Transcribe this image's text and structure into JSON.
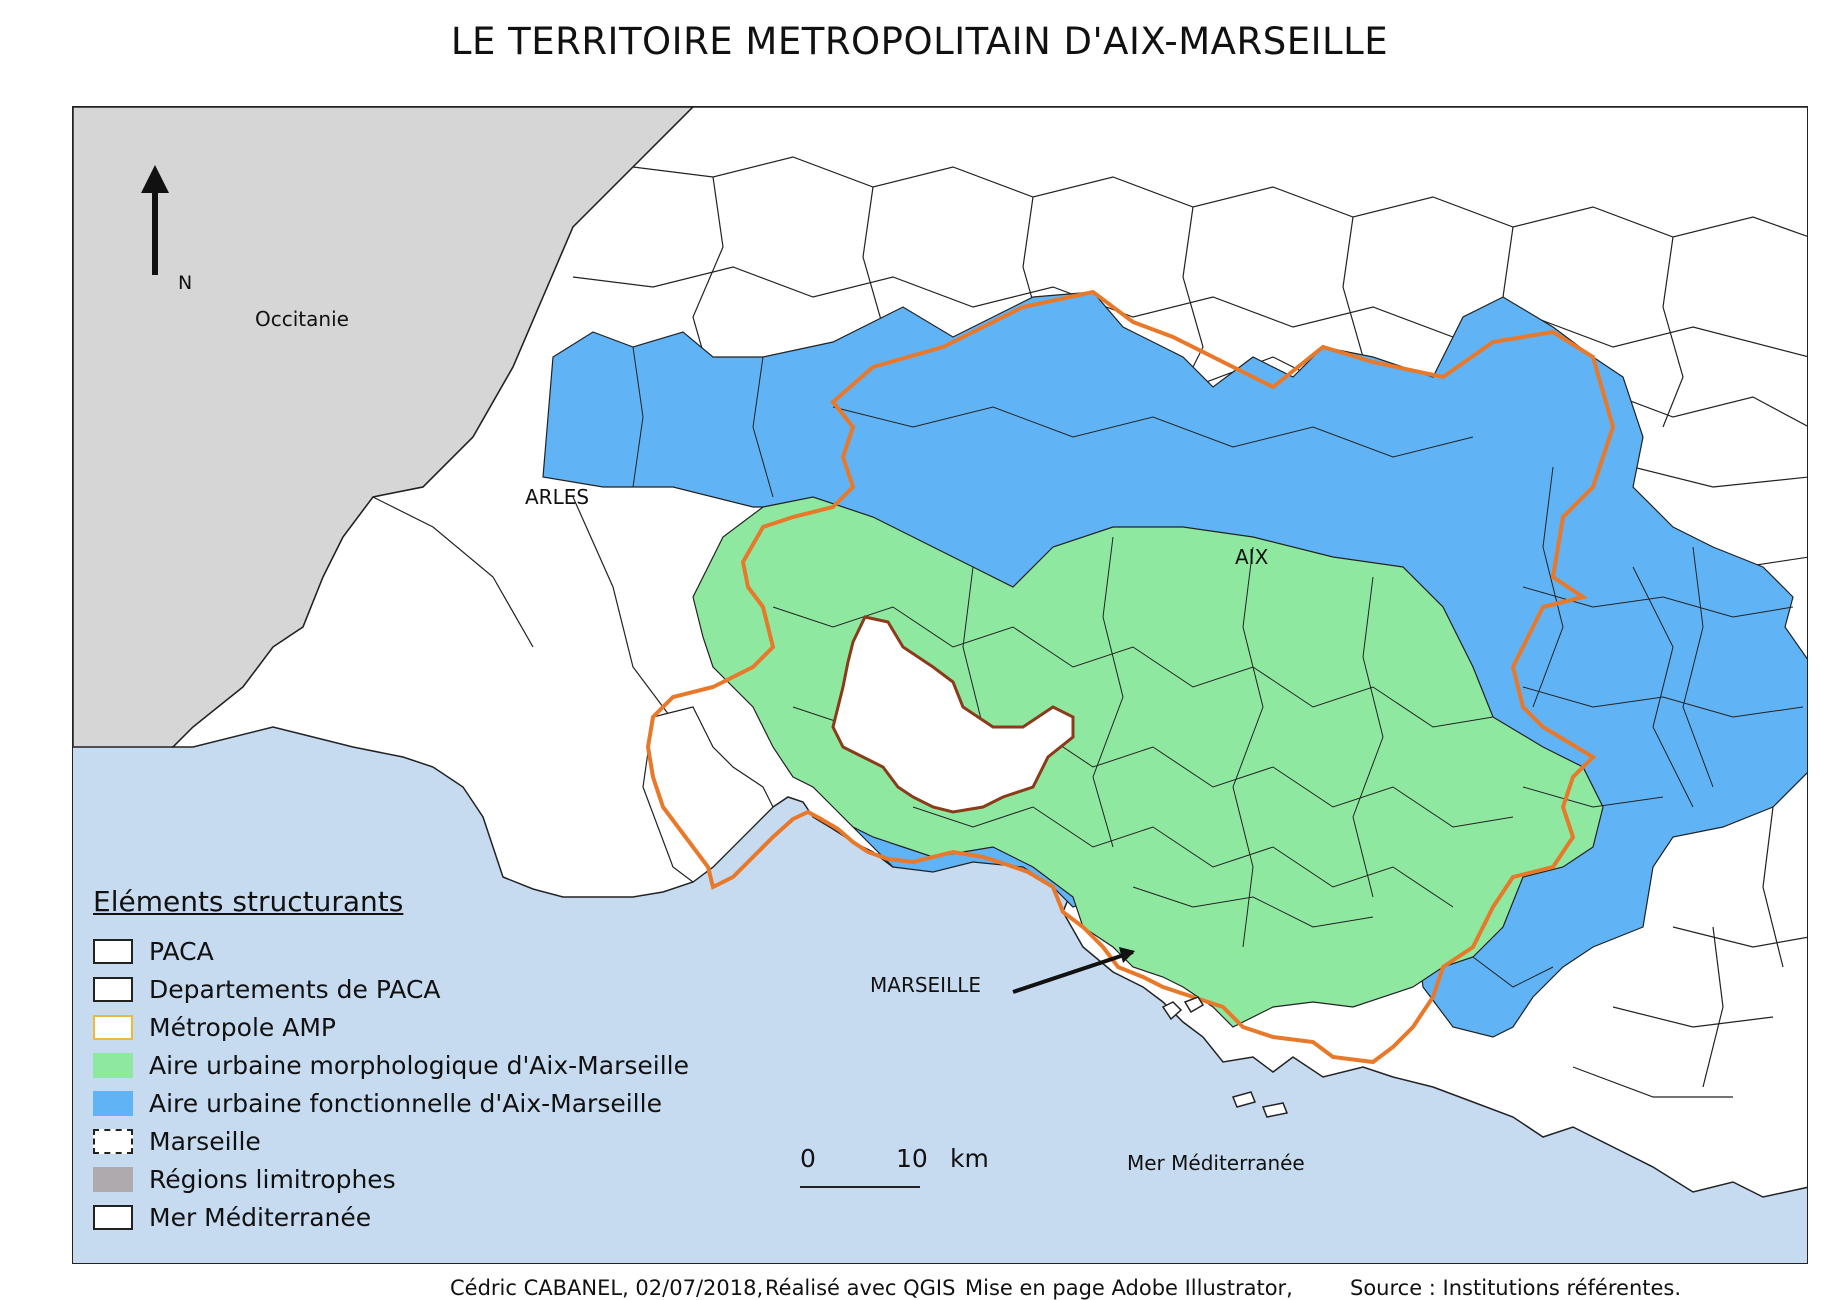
{
  "title": "LE TERRITOIRE METROPOLITAIN D'AIX-MARSEILLE",
  "map": {
    "north_label": "N",
    "places": {
      "occitanie": "Occitanie",
      "arles": "ARLES",
      "aix": "AIX",
      "marseille": "MARSEILLE",
      "mer": "Mer Méditerranée"
    },
    "scale": {
      "start": "0",
      "end": "10",
      "unit": "km"
    }
  },
  "legend": {
    "title": "Eléments structurants",
    "items": [
      {
        "label": "PACA",
        "fill": "#ffffff",
        "border": "#222222",
        "style": "solid"
      },
      {
        "label": "Departements de PACA",
        "fill": "#ffffff",
        "border": "#222222",
        "style": "solid"
      },
      {
        "label": "Métropole AMP",
        "fill": "#ffffff",
        "border": "#f0b838",
        "style": "solid"
      },
      {
        "label": "Aire urbaine morphologique d'Aix-Marseille",
        "fill": "#8fe8a0",
        "border": "#8fe8a0",
        "style": "solid"
      },
      {
        "label": "Aire urbaine fonctionnelle d'Aix-Marseille",
        "fill": "#60b3f5",
        "border": "#60b3f5",
        "style": "solid"
      },
      {
        "label": "Marseille",
        "fill": "#ffffff",
        "border": "#222222",
        "style": "dashed"
      },
      {
        "label": "Régions limitrophes",
        "fill": "#aeaaae",
        "border": "#aeaaae",
        "style": "solid"
      },
      {
        "label": "Mer Méditerranée",
        "fill": "#ffffff",
        "border": "#222222",
        "style": "solid"
      }
    ]
  },
  "colors": {
    "sea": "#c6dbf0",
    "region": "#d6d6d6",
    "paca": "#ffffff",
    "morphologique": "#8fe8a0",
    "fonctionnelle": "#60b3f5",
    "metropole_outline": "#e8792a"
  },
  "credits": {
    "author": "Cédric CABANEL, 02/07/2018,",
    "software": "Réalisé avec QGIS",
    "layout": "Mise en page Adobe Illustrator,",
    "source": "Source : Institutions référentes."
  }
}
